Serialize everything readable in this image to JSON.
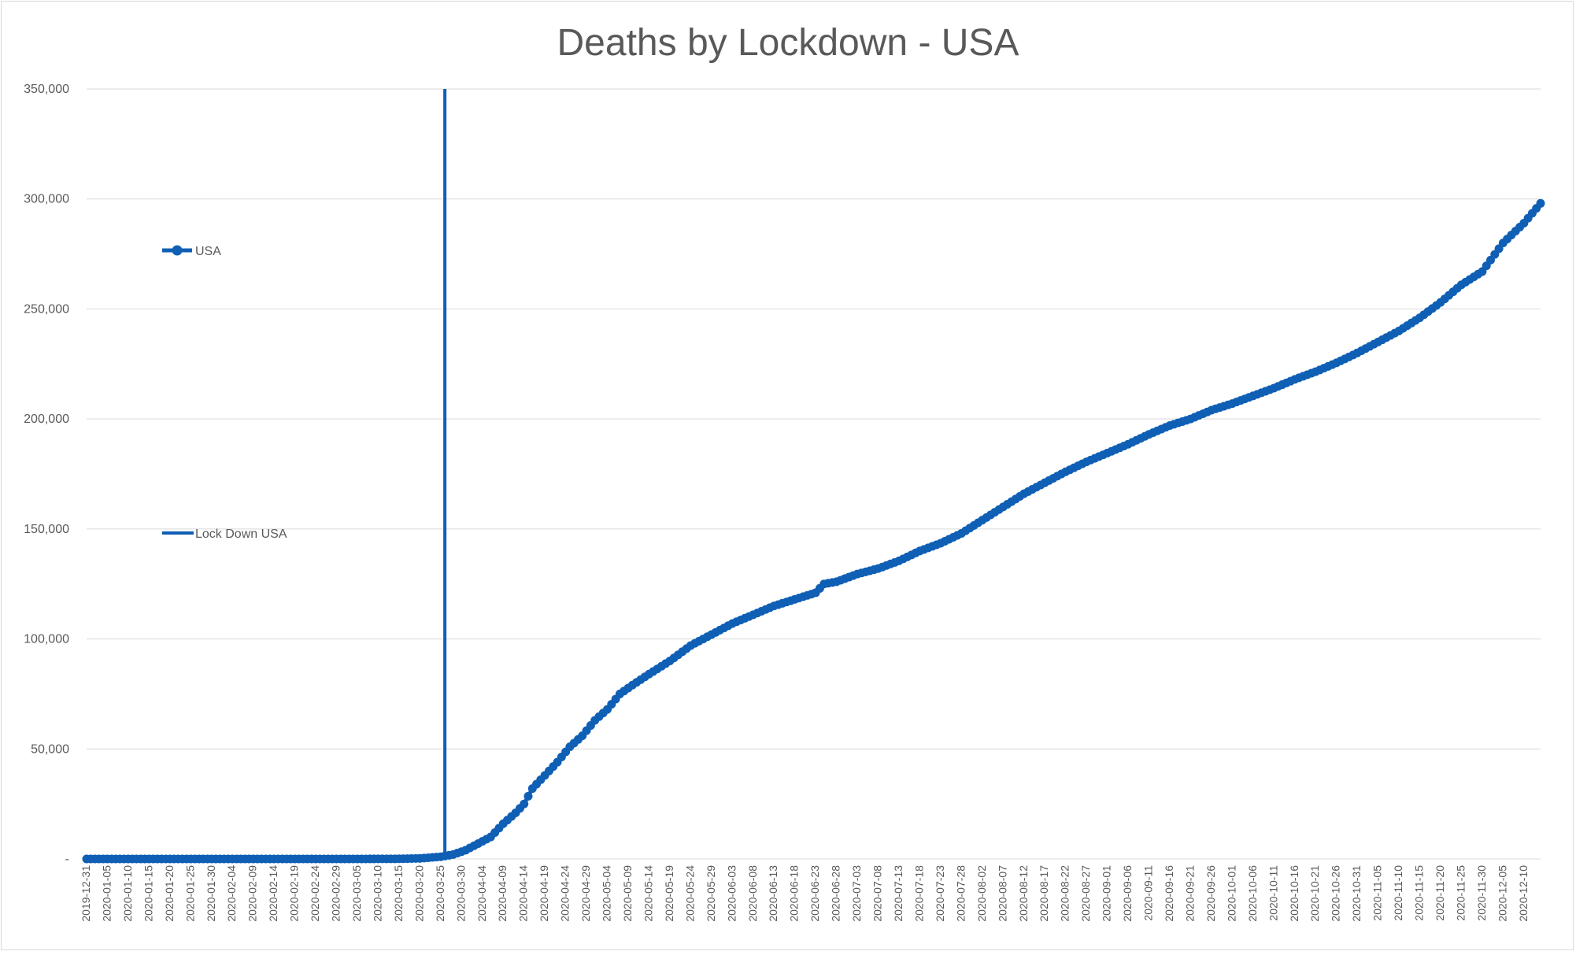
{
  "chart_data": {
    "type": "line",
    "title": "Deaths by Lockdown - USA",
    "xlabel": "",
    "ylabel": "",
    "ylim": [
      0,
      350000
    ],
    "y_ticks": [
      0,
      50000,
      100000,
      150000,
      200000,
      250000,
      300000,
      350000
    ],
    "y_tick_labels": [
      "-",
      "50,000",
      "100,000",
      "150,000",
      "200,000",
      "250,000",
      "300,000",
      "350,000"
    ],
    "x_range": [
      "2019-12-31",
      "2020-12-14"
    ],
    "x_tick_labels": [
      "2019-12-31",
      "2020-01-05",
      "2020-01-10",
      "2020-01-15",
      "2020-01-20",
      "2020-01-25",
      "2020-01-30",
      "2020-02-04",
      "2020-02-09",
      "2020-02-14",
      "2020-02-19",
      "2020-02-24",
      "2020-02-29",
      "2020-03-05",
      "2020-03-10",
      "2020-03-15",
      "2020-03-20",
      "2020-03-25",
      "2020-03-30",
      "2020-04-04",
      "2020-04-09",
      "2020-04-14",
      "2020-04-19",
      "2020-04-24",
      "2020-04-29",
      "2020-05-04",
      "2020-05-09",
      "2020-05-14",
      "2020-05-19",
      "2020-05-24",
      "2020-05-29",
      "2020-06-03",
      "2020-06-08",
      "2020-06-13",
      "2020-06-18",
      "2020-06-23",
      "2020-06-28",
      "2020-07-03",
      "2020-07-08",
      "2020-07-13",
      "2020-07-18",
      "2020-07-23",
      "2020-07-28",
      "2020-08-02",
      "2020-08-07",
      "2020-08-12",
      "2020-08-17",
      "2020-08-22",
      "2020-08-27",
      "2020-09-01",
      "2020-09-06",
      "2020-09-11",
      "2020-09-16",
      "2020-09-21",
      "2020-09-26",
      "2020-10-01",
      "2020-10-06",
      "2020-10-11",
      "2020-10-16",
      "2020-10-21",
      "2020-10-26",
      "2020-10-31",
      "2020-11-05",
      "2020-11-10",
      "2020-11-15",
      "2020-11-20",
      "2020-11-25",
      "2020-11-30",
      "2020-12-05",
      "2020-12-10"
    ],
    "grid": true,
    "legend": "left",
    "series": [
      {
        "name": "USA",
        "color": "#0f5fb5",
        "marker": "circle",
        "points": [
          {
            "x": "2019-12-31",
            "y": 0
          },
          {
            "x": "2020-01-15",
            "y": 0
          },
          {
            "x": "2020-02-01",
            "y": 0
          },
          {
            "x": "2020-02-15",
            "y": 0
          },
          {
            "x": "2020-03-01",
            "y": 1
          },
          {
            "x": "2020-03-10",
            "y": 30
          },
          {
            "x": "2020-03-15",
            "y": 70
          },
          {
            "x": "2020-03-20",
            "y": 250
          },
          {
            "x": "2020-03-25",
            "y": 1000
          },
          {
            "x": "2020-03-28",
            "y": 2000
          },
          {
            "x": "2020-03-31",
            "y": 4000
          },
          {
            "x": "2020-04-03",
            "y": 7000
          },
          {
            "x": "2020-04-06",
            "y": 10000
          },
          {
            "x": "2020-04-09",
            "y": 16000
          },
          {
            "x": "2020-04-12",
            "y": 21000
          },
          {
            "x": "2020-04-14",
            "y": 25000
          },
          {
            "x": "2020-04-16",
            "y": 32000
          },
          {
            "x": "2020-04-19",
            "y": 38000
          },
          {
            "x": "2020-04-22",
            "y": 44000
          },
          {
            "x": "2020-04-25",
            "y": 51000
          },
          {
            "x": "2020-04-28",
            "y": 56000
          },
          {
            "x": "2020-05-01",
            "y": 63000
          },
          {
            "x": "2020-05-04",
            "y": 68000
          },
          {
            "x": "2020-05-07",
            "y": 75000
          },
          {
            "x": "2020-05-10",
            "y": 79000
          },
          {
            "x": "2020-05-14",
            "y": 84000
          },
          {
            "x": "2020-05-19",
            "y": 90000
          },
          {
            "x": "2020-05-24",
            "y": 97000
          },
          {
            "x": "2020-05-29",
            "y": 102000
          },
          {
            "x": "2020-06-03",
            "y": 107000
          },
          {
            "x": "2020-06-08",
            "y": 111000
          },
          {
            "x": "2020-06-13",
            "y": 115000
          },
          {
            "x": "2020-06-18",
            "y": 118000
          },
          {
            "x": "2020-06-23",
            "y": 121000
          },
          {
            "x": "2020-06-25",
            "y": 125000
          },
          {
            "x": "2020-06-28",
            "y": 126000
          },
          {
            "x": "2020-07-03",
            "y": 129500
          },
          {
            "x": "2020-07-08",
            "y": 132000
          },
          {
            "x": "2020-07-13",
            "y": 135500
          },
          {
            "x": "2020-07-18",
            "y": 140000
          },
          {
            "x": "2020-07-23",
            "y": 143500
          },
          {
            "x": "2020-07-28",
            "y": 148000
          },
          {
            "x": "2020-08-02",
            "y": 154000
          },
          {
            "x": "2020-08-07",
            "y": 160000
          },
          {
            "x": "2020-08-12",
            "y": 166000
          },
          {
            "x": "2020-08-17",
            "y": 171000
          },
          {
            "x": "2020-08-22",
            "y": 176000
          },
          {
            "x": "2020-08-27",
            "y": 180500
          },
          {
            "x": "2020-09-01",
            "y": 184500
          },
          {
            "x": "2020-09-06",
            "y": 188500
          },
          {
            "x": "2020-09-11",
            "y": 193000
          },
          {
            "x": "2020-09-16",
            "y": 197000
          },
          {
            "x": "2020-09-21",
            "y": 200000
          },
          {
            "x": "2020-09-26",
            "y": 204000
          },
          {
            "x": "2020-10-01",
            "y": 207000
          },
          {
            "x": "2020-10-06",
            "y": 210500
          },
          {
            "x": "2020-10-11",
            "y": 214000
          },
          {
            "x": "2020-10-16",
            "y": 218000
          },
          {
            "x": "2020-10-21",
            "y": 221500
          },
          {
            "x": "2020-10-26",
            "y": 225500
          },
          {
            "x": "2020-10-31",
            "y": 230000
          },
          {
            "x": "2020-11-05",
            "y": 235000
          },
          {
            "x": "2020-11-10",
            "y": 240000
          },
          {
            "x": "2020-11-15",
            "y": 246000
          },
          {
            "x": "2020-11-20",
            "y": 253000
          },
          {
            "x": "2020-11-25",
            "y": 261000
          },
          {
            "x": "2020-11-30",
            "y": 267000
          },
          {
            "x": "2020-12-05",
            "y": 280000
          },
          {
            "x": "2020-12-10",
            "y": 289000
          },
          {
            "x": "2020-12-14",
            "y": 298000
          }
        ]
      },
      {
        "name": "Lock Down USA",
        "color": "#0f5fb5",
        "type": "vertical-line",
        "x": "2020-03-26",
        "y_range": [
          0,
          350000
        ]
      }
    ]
  }
}
